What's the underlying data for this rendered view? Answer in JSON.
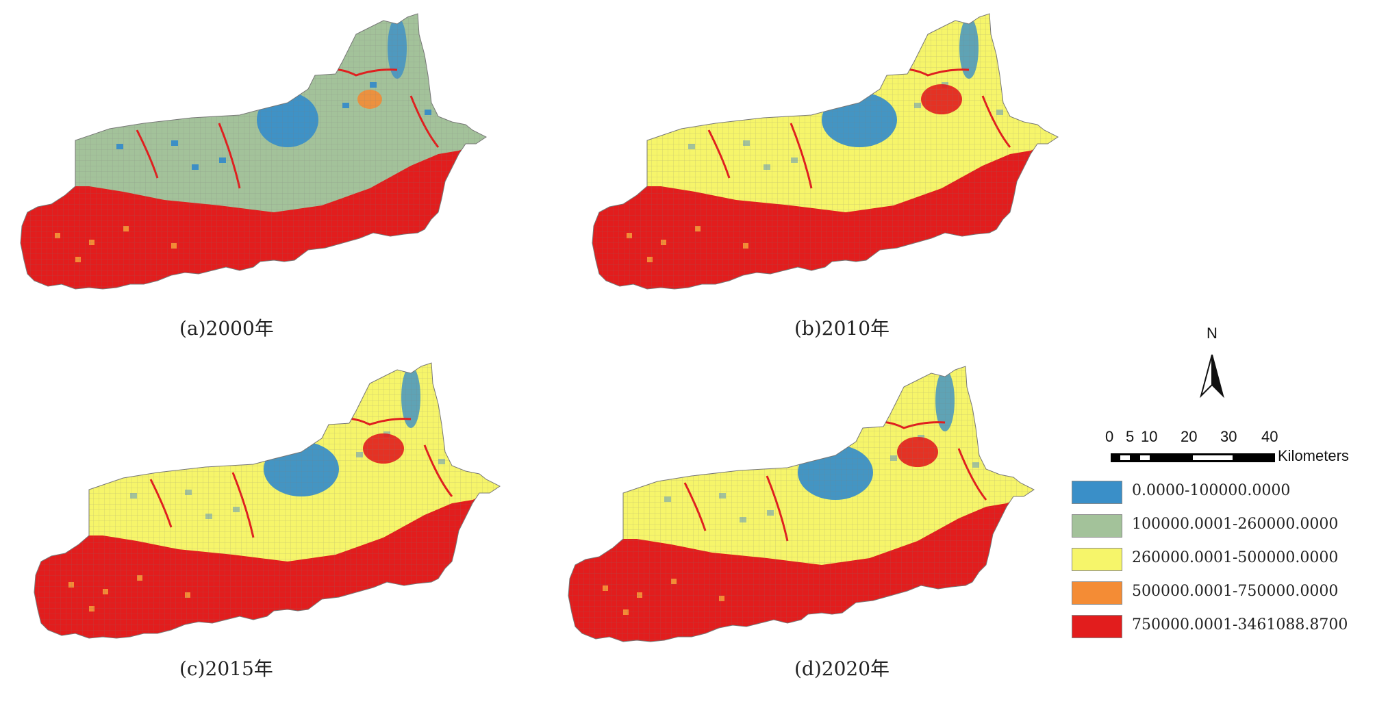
{
  "panels": [
    {
      "id": "a",
      "caption": "(a)2000年",
      "dominant": "green"
    },
    {
      "id": "b",
      "caption": "(b)2010年",
      "dominant": "yellow"
    },
    {
      "id": "c",
      "caption": "(c)2015年",
      "dominant": "yellow"
    },
    {
      "id": "d",
      "caption": "(d)2020年",
      "dominant": "yellow"
    }
  ],
  "north_arrow": {
    "label": "N"
  },
  "scale_bar": {
    "ticks": [
      "0",
      "5",
      "10",
      "20",
      "30",
      "40"
    ],
    "unit": "Kilometers"
  },
  "legend": [
    {
      "label": "0.0000-100000.0000",
      "color": "#3a8fc8"
    },
    {
      "label": "100000.0001-260000.0000",
      "color": "#a3c29a"
    },
    {
      "label": "260000.0001-500000.0000",
      "color": "#f6f56a"
    },
    {
      "label": "500000.0001-750000.0000",
      "color": "#f48c35"
    },
    {
      "label": "750000.0001-3461088.8700",
      "color": "#e21d1d"
    }
  ]
}
